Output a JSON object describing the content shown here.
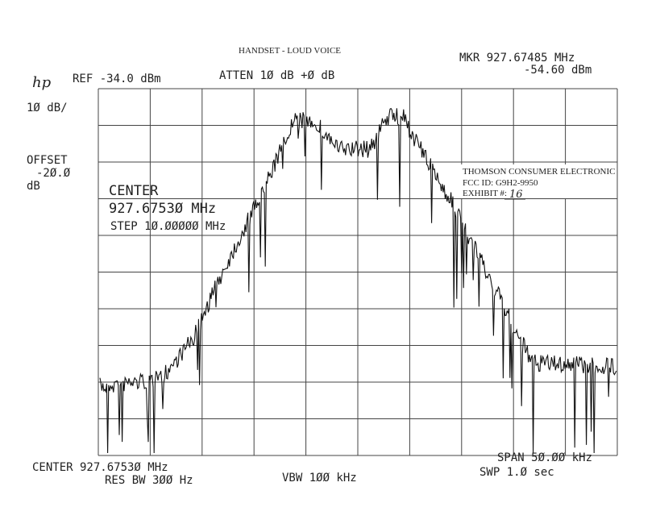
{
  "header": {
    "title": "HANDSET - LOUD VOICE",
    "marker_freq": "MKR 927.67485 MHz",
    "marker_level": "-54.60 dBm",
    "logo": "hp",
    "ref": "REF -34.0 dBm",
    "atten": "ATTEN 1Ø dB +Ø dB"
  },
  "left": {
    "scale": "1Ø dB/",
    "offset_label": "OFFSET",
    "offset_value": "-2Ø.Ø",
    "offset_unit": "dB"
  },
  "overlay": {
    "center_label": "CENTER",
    "center_value": "927.6753Ø MHz",
    "step": "STEP 1Ø.ØØØØØ MHz"
  },
  "stamp": {
    "company": "THOMSON CONSUMER ELECTRONIC",
    "fcc": "FCC ID:  G9H2-9950",
    "exhibit": "EXHIBIT #:",
    "exhibit_no": "16"
  },
  "footer": {
    "center": "CENTER 927.6753Ø MHz",
    "res_bw": "RES BW 3ØØ Hz",
    "vbw": "VBW 1ØØ kHz",
    "span": "SPAN 5Ø.ØØ kHz",
    "sweep": "SWP 1.Ø  sec"
  }
}
